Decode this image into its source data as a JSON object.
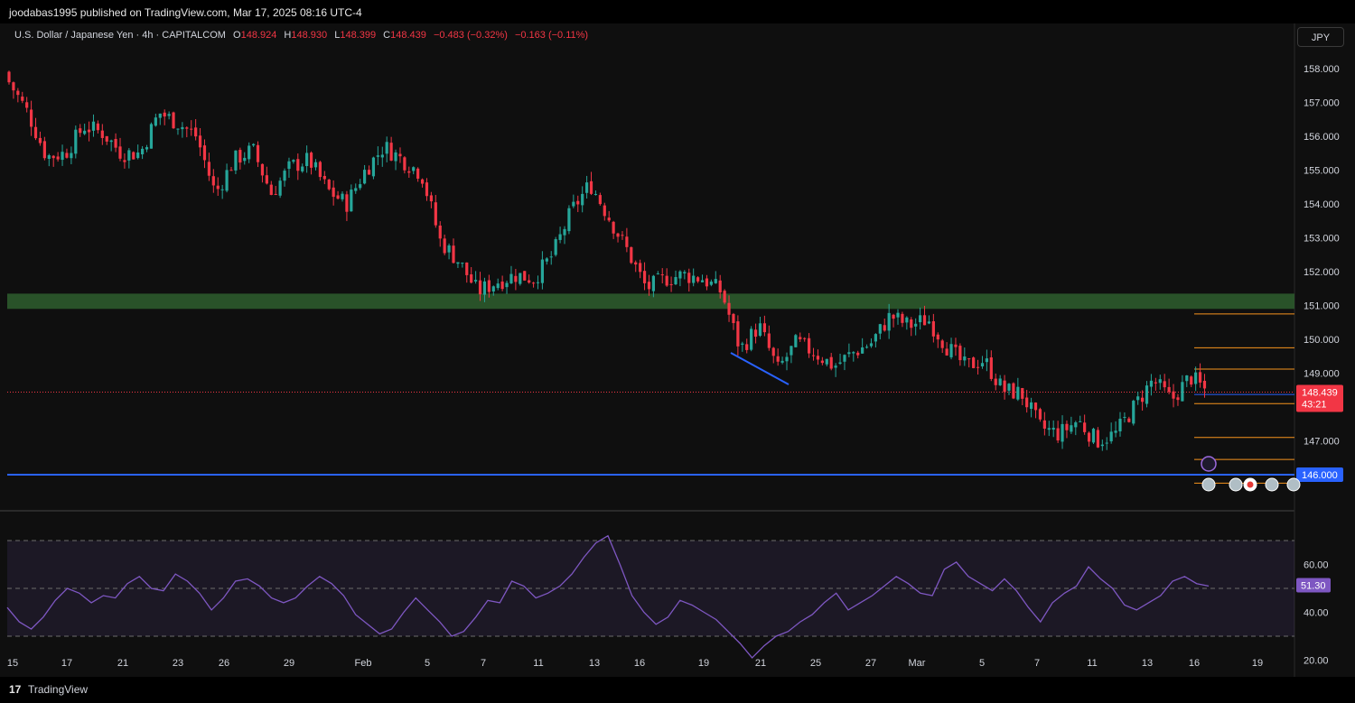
{
  "header": {
    "published": "joodabas1995 published on TradingView.com, Mar 17, 2025 08:16 UTC-4"
  },
  "legend": {
    "symbol": "U.S. Dollar / Japanese Yen · 4h · CAPITALCOM",
    "o_label": "O",
    "o": "148.924",
    "h_label": "H",
    "h": "148.930",
    "l_label": "L",
    "l": "148.399",
    "c_label": "C",
    "c": "148.439",
    "change": "−0.483 (−0.32%)",
    "extra": "−0.163 (−0.11%)"
  },
  "currency_button": "JPY",
  "footer": {
    "logo": "17",
    "brand": "TradingView"
  },
  "colors": {
    "up": "#26a69a",
    "down": "#f23645",
    "zone": "#2e5e2e",
    "support": "#2962ff",
    "fib": "#f7941d",
    "rsi": "#7e57c2",
    "background": "#0f0f0f"
  },
  "chart_data": [
    {
      "type": "candlestick",
      "title": "U.S. Dollar / Japanese Yen · 4h · CAPITALCOM",
      "y_axis": {
        "ticks": [
          "158.000",
          "157.000",
          "156.000",
          "155.000",
          "154.000",
          "153.000",
          "152.000",
          "151.000",
          "150.000",
          "149.000",
          "147.000"
        ],
        "range": [
          145.6,
          159.0
        ]
      },
      "x_axis": {
        "ticks": [
          "15",
          "17",
          "21",
          "23",
          "26",
          "29",
          "Feb",
          "5",
          "7",
          "11",
          "13",
          "16",
          "19",
          "21",
          "25",
          "27",
          "Mar",
          "5",
          "7",
          "11",
          "13",
          "16",
          "19"
        ]
      },
      "last_price": "148.439",
      "countdown": "43:21",
      "support_level_label": "146.000",
      "support_level": 146.0,
      "resistance_zone": [
        150.9,
        151.35
      ],
      "fib_levels": [
        150.75,
        149.75,
        149.12,
        148.1,
        147.1,
        146.45,
        145.75
      ],
      "trendline": {
        "from": [
          "Feb 20",
          149.55
        ],
        "to": [
          "Feb 23",
          148.75
        ]
      },
      "close_path": [
        [
          15,
          157.6
        ],
        [
          16,
          156.7
        ],
        [
          17,
          155.4
        ],
        [
          18,
          155.5
        ],
        [
          19,
          156.3
        ],
        [
          20,
          156.1
        ],
        [
          21,
          155.5
        ],
        [
          22,
          155.5
        ],
        [
          23,
          156.7
        ],
        [
          24,
          156.4
        ],
        [
          25,
          156.0
        ],
        [
          26,
          154.3
        ],
        [
          27,
          155.3
        ],
        [
          28,
          155.6
        ],
        [
          29,
          154.3
        ],
        [
          30,
          155.1
        ],
        [
          31,
          155.3
        ],
        [
          32,
          154.4
        ],
        [
          33,
          154.0
        ],
        [
          34,
          155.0
        ],
        [
          35,
          155.7
        ],
        [
          36,
          155.3
        ],
        [
          37,
          154.9
        ],
        [
          38,
          152.9
        ],
        [
          39,
          152.3
        ],
        [
          40,
          151.4
        ],
        [
          41,
          151.7
        ],
        [
          42,
          151.9
        ],
        [
          43,
          151.8
        ],
        [
          44,
          152.5
        ],
        [
          45,
          153.8
        ],
        [
          46,
          154.6
        ],
        [
          47,
          153.6
        ],
        [
          48,
          152.6
        ],
        [
          49,
          151.5
        ],
        [
          50,
          151.8
        ],
        [
          51,
          151.9
        ],
        [
          52,
          151.8
        ],
        [
          53,
          151.4
        ],
        [
          54,
          149.7
        ],
        [
          55,
          150.4
        ],
        [
          56,
          149.1
        ],
        [
          57,
          149.9
        ],
        [
          58,
          149.6
        ],
        [
          59,
          149.2
        ],
        [
          60,
          149.6
        ],
        [
          61,
          149.9
        ],
        [
          62,
          150.7
        ],
        [
          63,
          150.4
        ],
        [
          64,
          150.6
        ],
        [
          65,
          149.8
        ],
        [
          66,
          149.2
        ],
        [
          67,
          149.4
        ],
        [
          68,
          148.5
        ],
        [
          69,
          148.4
        ],
        [
          70,
          147.4
        ],
        [
          71,
          147.2
        ],
        [
          72,
          147.6
        ],
        [
          73,
          147.0
        ],
        [
          74,
          147.2
        ],
        [
          75,
          148.0
        ],
        [
          76,
          148.8
        ],
        [
          77,
          148.2
        ],
        [
          78,
          148.9
        ],
        [
          79,
          148.4
        ]
      ]
    },
    {
      "type": "line",
      "title": "RSI",
      "y_axis": {
        "ticks": [
          "60.00",
          "40.00",
          "20.00"
        ],
        "range": [
          15,
          75
        ],
        "band": [
          30,
          70
        ],
        "mid": 50
      },
      "last_value": "51.30",
      "values": [
        42,
        36,
        33,
        38,
        45,
        50,
        48,
        44,
        47,
        46,
        52,
        55,
        50,
        49,
        56,
        53,
        48,
        41,
        46,
        53,
        54,
        51,
        46,
        44,
        46,
        51,
        55,
        52,
        47,
        39,
        35,
        31,
        33,
        40,
        46,
        41,
        36,
        30,
        32,
        38,
        45,
        44,
        53,
        51,
        46,
        48,
        51,
        56,
        63,
        69,
        72,
        60,
        47,
        40,
        35,
        38,
        45,
        43,
        40,
        37,
        32,
        27,
        21,
        26,
        30,
        32,
        36,
        39,
        44,
        48,
        41,
        44,
        47,
        51,
        55,
        52,
        48,
        47,
        58,
        61,
        55,
        52,
        49,
        54,
        49,
        42,
        36,
        44,
        48,
        51,
        59,
        54,
        50,
        43,
        41,
        44,
        47,
        53,
        55,
        52,
        51
      ]
    }
  ]
}
